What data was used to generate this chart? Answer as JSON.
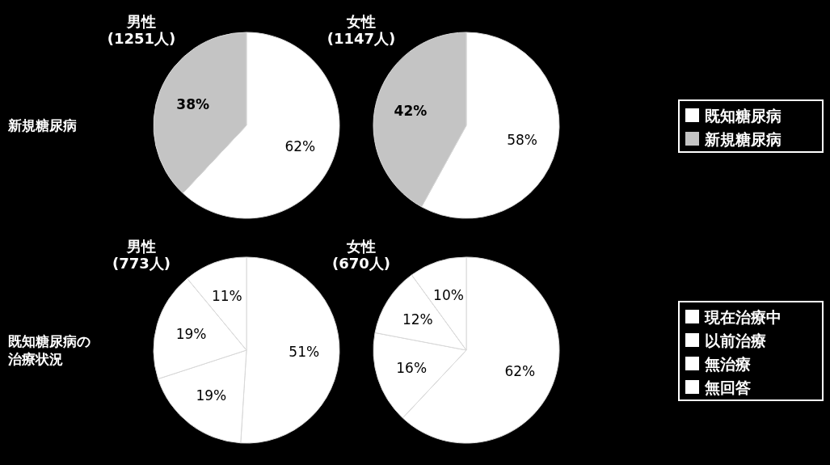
{
  "chart_data": [
    {
      "type": "pie",
      "title": "男性\n(1251人)",
      "categories": [
        "既知糖尿病",
        "新規糖尿病"
      ],
      "values": [
        62,
        38
      ],
      "value_labels": [
        "62%",
        "38%"
      ],
      "colors": [
        "#ffffff",
        "#c4c4c4"
      ],
      "annotations": [
        "新規糖尿病"
      ],
      "legend": "right"
    },
    {
      "type": "pie",
      "title": "女性\n(1147人)",
      "categories": [
        null,
        null
      ],
      "values": [
        58,
        42
      ],
      "value_labels": [
        "58%",
        "42%"
      ],
      "colors": [
        "#ffffff",
        "#c4c4c4"
      ]
    },
    {
      "type": "pie",
      "title": "男性\n(773人)",
      "categories": [
        "現在治療中",
        "以前治療",
        "無治療",
        "無回答"
      ],
      "values": [
        51,
        19,
        19,
        11
      ],
      "value_labels": [
        "51%",
        "19%",
        "19%",
        "11%"
      ],
      "colors": [
        "#ffffff",
        "#ffffff",
        "#ffffff",
        "#ffffff"
      ],
      "annotations": [
        "既知糖尿病の治療状況"
      ],
      "legend": "right"
    },
    {
      "type": "pie",
      "title": "女性\n(670人)",
      "categories": [
        null,
        null,
        null,
        null
      ],
      "values": [
        62,
        16,
        12,
        10
      ],
      "value_labels": [
        "62%",
        "16%",
        "12%",
        "10%"
      ],
      "colors": [
        "#ffffff",
        "#ffffff",
        "#ffffff",
        "#ffffff"
      ]
    }
  ]
}
